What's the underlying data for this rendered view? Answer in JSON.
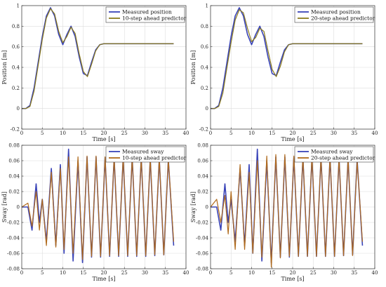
{
  "chart_data": [
    {
      "type": "line",
      "xlabel": "Time [s]",
      "ylabel": "Position [m]",
      "xlim": [
        0,
        40
      ],
      "ylim": [
        -0.2,
        1.0
      ],
      "xticks": [
        0,
        5,
        10,
        15,
        20,
        25,
        30,
        35,
        40
      ],
      "yticks": [
        -0.2,
        0,
        0.2,
        0.4,
        0.6,
        0.8,
        1.0
      ],
      "grid": true,
      "legend": "top-right",
      "series": [
        {
          "name": "Measured position",
          "color": "#3a44b8",
          "x": [
            0,
            1,
            2,
            3,
            4,
            5,
            6,
            7,
            8,
            9,
            10,
            11,
            12,
            13,
            14,
            15,
            16,
            17,
            18,
            19,
            20,
            25,
            30,
            37
          ],
          "y": [
            0,
            0,
            0.03,
            0.2,
            0.45,
            0.7,
            0.9,
            0.98,
            0.9,
            0.72,
            0.62,
            0.72,
            0.8,
            0.7,
            0.5,
            0.34,
            0.32,
            0.45,
            0.57,
            0.62,
            0.63,
            0.63,
            0.63,
            0.63
          ]
        },
        {
          "name": "10-step ahead predictor",
          "color": "#8a7a1c",
          "x": [
            0,
            1,
            2,
            3,
            4,
            5,
            6,
            7,
            8,
            9,
            10,
            11,
            12,
            13,
            14,
            15,
            16,
            17,
            18,
            19,
            20,
            25,
            30,
            37
          ],
          "y": [
            0,
            0,
            0.02,
            0.17,
            0.42,
            0.67,
            0.88,
            0.97,
            0.92,
            0.75,
            0.64,
            0.7,
            0.79,
            0.73,
            0.53,
            0.36,
            0.31,
            0.43,
            0.56,
            0.62,
            0.63,
            0.63,
            0.63,
            0.63
          ]
        }
      ]
    },
    {
      "type": "line",
      "xlabel": "Time [s]",
      "ylabel": "Position [m]",
      "xlim": [
        0,
        40
      ],
      "ylim": [
        -0.2,
        1.0
      ],
      "xticks": [
        0,
        5,
        10,
        15,
        20,
        25,
        30,
        35,
        40
      ],
      "yticks": [
        -0.2,
        0,
        0.2,
        0.4,
        0.6,
        0.8,
        1.0
      ],
      "grid": true,
      "legend": "top-right",
      "series": [
        {
          "name": "Measured position",
          "color": "#3a44b8",
          "x": [
            0,
            1,
            2,
            3,
            4,
            5,
            6,
            7,
            8,
            9,
            10,
            11,
            12,
            13,
            14,
            15,
            16,
            17,
            18,
            19,
            20,
            25,
            30,
            37
          ],
          "y": [
            0,
            0,
            0.03,
            0.2,
            0.45,
            0.7,
            0.9,
            0.98,
            0.9,
            0.72,
            0.62,
            0.72,
            0.8,
            0.7,
            0.5,
            0.34,
            0.32,
            0.45,
            0.57,
            0.62,
            0.63,
            0.63,
            0.63,
            0.63
          ]
        },
        {
          "name": "20-step ahead predictor",
          "color": "#8a7a1c",
          "x": [
            0,
            1,
            2,
            3,
            4,
            5,
            6,
            7,
            8,
            9,
            10,
            11,
            12,
            13,
            14,
            15,
            16,
            17,
            18,
            19,
            20,
            25,
            30,
            37
          ],
          "y": [
            0,
            0,
            0.02,
            0.15,
            0.4,
            0.64,
            0.86,
            0.96,
            0.93,
            0.78,
            0.65,
            0.69,
            0.78,
            0.75,
            0.56,
            0.38,
            0.31,
            0.41,
            0.55,
            0.62,
            0.63,
            0.63,
            0.63,
            0.63
          ]
        }
      ]
    },
    {
      "type": "line",
      "xlabel": "Time [s]",
      "ylabel": "Sway [rad]",
      "xlim": [
        0,
        40
      ],
      "ylim": [
        -0.08,
        0.08
      ],
      "xticks": [
        0,
        5,
        10,
        15,
        20,
        25,
        30,
        35,
        40
      ],
      "yticks": [
        -0.08,
        -0.06,
        -0.04,
        -0.02,
        0,
        0.02,
        0.04,
        0.06,
        0.08
      ],
      "grid": true,
      "legend": "top-right",
      "series": [
        {
          "name": "Measured sway",
          "color": "#3a44b8",
          "x": [
            0,
            1.5,
            2.5,
            3.5,
            4.3,
            5,
            6,
            7.2,
            8.3,
            9.4,
            10.3,
            11.4,
            12.5,
            13.7,
            14.8,
            15.9,
            17,
            18.1,
            19.2,
            20.3,
            21.4,
            22.5,
            23.6,
            24.7,
            25.8,
            26.9,
            28,
            29.1,
            30.2,
            31.3,
            32.4,
            33.5,
            34.6,
            35.7,
            37
          ],
          "y": [
            0,
            0,
            -0.03,
            0.03,
            -0.02,
            0.01,
            -0.045,
            0.05,
            -0.05,
            0.055,
            -0.06,
            0.075,
            -0.07,
            0.06,
            -0.072,
            0.065,
            -0.065,
            0.065,
            -0.065,
            0.064,
            -0.064,
            0.064,
            -0.064,
            0.064,
            -0.064,
            0.064,
            -0.064,
            0.064,
            -0.064,
            0.063,
            -0.063,
            0.063,
            -0.062,
            0.062,
            -0.05
          ]
        },
        {
          "name": "10-step ahead predictor",
          "color": "#b06a1c",
          "x": [
            0,
            1.5,
            2.5,
            3.5,
            4.3,
            5,
            6,
            7.2,
            8.3,
            9.4,
            10.3,
            11.4,
            12.5,
            13.7,
            14.8,
            15.9,
            17,
            18.1,
            19.2,
            20.3,
            21.4,
            22.5,
            23.6,
            24.7,
            25.8,
            26.9,
            28,
            29.1,
            30.2,
            31.3,
            32.4,
            33.5,
            34.6,
            35.7,
            37
          ],
          "y": [
            0,
            0.005,
            -0.025,
            0.02,
            -0.03,
            0.01,
            -0.05,
            0.045,
            -0.052,
            0.05,
            -0.055,
            0.065,
            -0.06,
            0.065,
            -0.068,
            0.066,
            -0.064,
            0.066,
            -0.064,
            0.065,
            -0.063,
            0.065,
            -0.063,
            0.065,
            -0.063,
            0.064,
            -0.063,
            0.064,
            -0.063,
            0.064,
            -0.062,
            0.064,
            -0.062,
            0.062,
            -0.045
          ]
        }
      ]
    },
    {
      "type": "line",
      "xlabel": "Time [s]",
      "ylabel": "Sway [rad]",
      "xlim": [
        0,
        40
      ],
      "ylim": [
        -0.08,
        0.08
      ],
      "xticks": [
        0,
        5,
        10,
        15,
        20,
        25,
        30,
        35,
        40
      ],
      "yticks": [
        -0.08,
        -0.06,
        -0.04,
        -0.02,
        0,
        0.02,
        0.04,
        0.06,
        0.08
      ],
      "grid": true,
      "legend": "top-right",
      "series": [
        {
          "name": "Measured sway",
          "color": "#3a44b8",
          "x": [
            0,
            1.5,
            2.5,
            3.5,
            4.3,
            5,
            6,
            7.2,
            8.3,
            9.4,
            10.3,
            11.4,
            12.5,
            13.7,
            14.8,
            15.9,
            17,
            18.1,
            19.2,
            20.3,
            21.4,
            22.5,
            23.6,
            24.7,
            25.8,
            26.9,
            28,
            29.1,
            30.2,
            31.3,
            32.4,
            33.5,
            34.6,
            35.7,
            37
          ],
          "y": [
            0,
            0,
            -0.03,
            0.03,
            -0.02,
            0.01,
            -0.045,
            0.05,
            -0.05,
            0.055,
            -0.06,
            0.075,
            -0.07,
            0.06,
            -0.072,
            0.065,
            -0.065,
            0.065,
            -0.065,
            0.064,
            -0.064,
            0.064,
            -0.064,
            0.064,
            -0.064,
            0.064,
            -0.064,
            0.064,
            -0.064,
            0.063,
            -0.063,
            0.063,
            -0.062,
            0.062,
            -0.05
          ]
        },
        {
          "name": "20-step ahead predictor",
          "color": "#b06a1c",
          "x": [
            0,
            1.5,
            2.5,
            3.5,
            4.3,
            5,
            6,
            7.2,
            8.3,
            9.4,
            10.3,
            11.4,
            12.5,
            13.7,
            14.8,
            15.9,
            17,
            18.1,
            19.2,
            20.3,
            21.4,
            22.5,
            23.6,
            24.7,
            25.8,
            26.9,
            28,
            29.1,
            30.2,
            31.3,
            32.4,
            33.5,
            34.6,
            35.7,
            37
          ],
          "y": [
            0,
            0.01,
            -0.02,
            0.015,
            -0.035,
            0.02,
            -0.055,
            0.055,
            -0.055,
            0.045,
            -0.06,
            0.06,
            -0.065,
            0.066,
            -0.078,
            0.068,
            -0.066,
            0.068,
            -0.064,
            0.066,
            -0.064,
            0.066,
            -0.064,
            0.066,
            -0.064,
            0.065,
            -0.064,
            0.065,
            -0.064,
            0.064,
            -0.063,
            0.064,
            -0.063,
            0.06,
            -0.045
          ]
        }
      ]
    }
  ]
}
